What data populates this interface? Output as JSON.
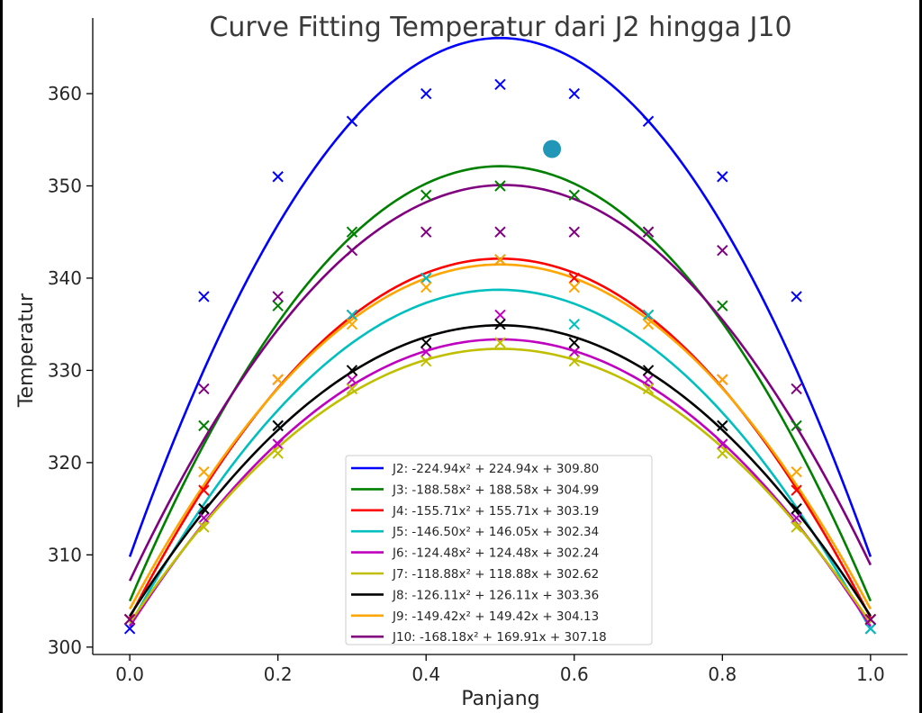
{
  "chart_data": {
    "type": "line",
    "title": "Curve Fitting Temperatur dari J2 hingga J10",
    "xlabel": "Panjang",
    "ylabel": "Temperatur",
    "xlim": [
      -0.05,
      1.05
    ],
    "ylim": [
      299.2,
      368.2
    ],
    "xticks": [
      0.0,
      0.2,
      0.4,
      0.6,
      0.8,
      1.0
    ],
    "xtick_labels": [
      "0.0",
      "0.2",
      "0.4",
      "0.6",
      "0.8",
      "1.0"
    ],
    "yticks": [
      300,
      310,
      320,
      330,
      340,
      350,
      360
    ],
    "ytick_labels": [
      "300",
      "310",
      "320",
      "330",
      "340",
      "350",
      "360"
    ],
    "grid": false,
    "legend_position": "bottom-center",
    "x": [
      0.0,
      0.1,
      0.2,
      0.3,
      0.4,
      0.5,
      0.6,
      0.7,
      0.8,
      0.9,
      1.0
    ],
    "series": [
      {
        "name": "J2",
        "color": "#0000ff",
        "label": "J2: -224.94x² + 224.94x + 309.80",
        "coeffs": [
          -224.94,
          224.94,
          309.8
        ],
        "values": [
          302,
          338,
          351,
          357,
          360,
          361,
          360,
          357,
          351,
          338,
          302
        ]
      },
      {
        "name": "J3",
        "color": "#008000",
        "label": "J3: -188.58x² + 188.58x + 304.99",
        "coeffs": [
          -188.58,
          188.58,
          304.99
        ],
        "values": [
          303,
          324,
          337,
          345,
          349,
          350,
          349,
          345,
          337,
          324,
          303
        ]
      },
      {
        "name": "J4",
        "color": "#ff0000",
        "label": "J4: -155.71x² + 155.71x + 303.19",
        "coeffs": [
          -155.71,
          155.71,
          303.19
        ],
        "values": [
          303,
          317,
          329,
          336,
          340,
          342,
          340,
          336,
          329,
          317,
          303
        ]
      },
      {
        "name": "J5",
        "color": "#00bfbf",
        "label": "J5: -146.50x² + 146.05x + 302.34",
        "coeffs": [
          -146.5,
          146.05,
          302.34
        ],
        "values": [
          303,
          314,
          324,
          336,
          340,
          342,
          335,
          336,
          324,
          314,
          302
        ]
      },
      {
        "name": "J6",
        "color": "#bf00bf",
        "label": "J6: -124.48x² + 124.48x + 302.24",
        "coeffs": [
          -124.48,
          124.48,
          302.24
        ],
        "values": [
          303,
          314,
          322,
          329,
          332,
          336,
          332,
          329,
          322,
          314,
          303
        ]
      },
      {
        "name": "J7",
        "color": "#bfbf00",
        "label": "J7: -118.88x² + 118.88x + 302.62",
        "coeffs": [
          -118.88,
          118.88,
          302.62
        ],
        "values": [
          303,
          313,
          321,
          328,
          331,
          333,
          331,
          328,
          321,
          313,
          303
        ]
      },
      {
        "name": "J8",
        "color": "#000000",
        "label": "J8: -126.11x² + 126.11x + 303.36",
        "coeffs": [
          -126.11,
          126.11,
          303.36
        ],
        "values": [
          303,
          315,
          324,
          330,
          333,
          335,
          333,
          330,
          324,
          315,
          303
        ]
      },
      {
        "name": "J9",
        "color": "#ffa500",
        "label": "J9: -149.42x² + 149.42x + 304.13",
        "coeffs": [
          -149.42,
          149.42,
          304.13
        ],
        "values": [
          303,
          319,
          329,
          335,
          339,
          342,
          339,
          335,
          329,
          319,
          303
        ]
      },
      {
        "name": "J10",
        "color": "#800080",
        "label": "J10: -168.18x² + 169.91x + 307.18",
        "coeffs": [
          -168.18,
          169.91,
          307.18
        ],
        "values": [
          303,
          328,
          338,
          343,
          345,
          345,
          345,
          345,
          343,
          328,
          303
        ]
      }
    ],
    "extra_points": [
      {
        "x": 0.57,
        "y": 354,
        "color": "#2196b6",
        "marker": "circle"
      }
    ]
  }
}
